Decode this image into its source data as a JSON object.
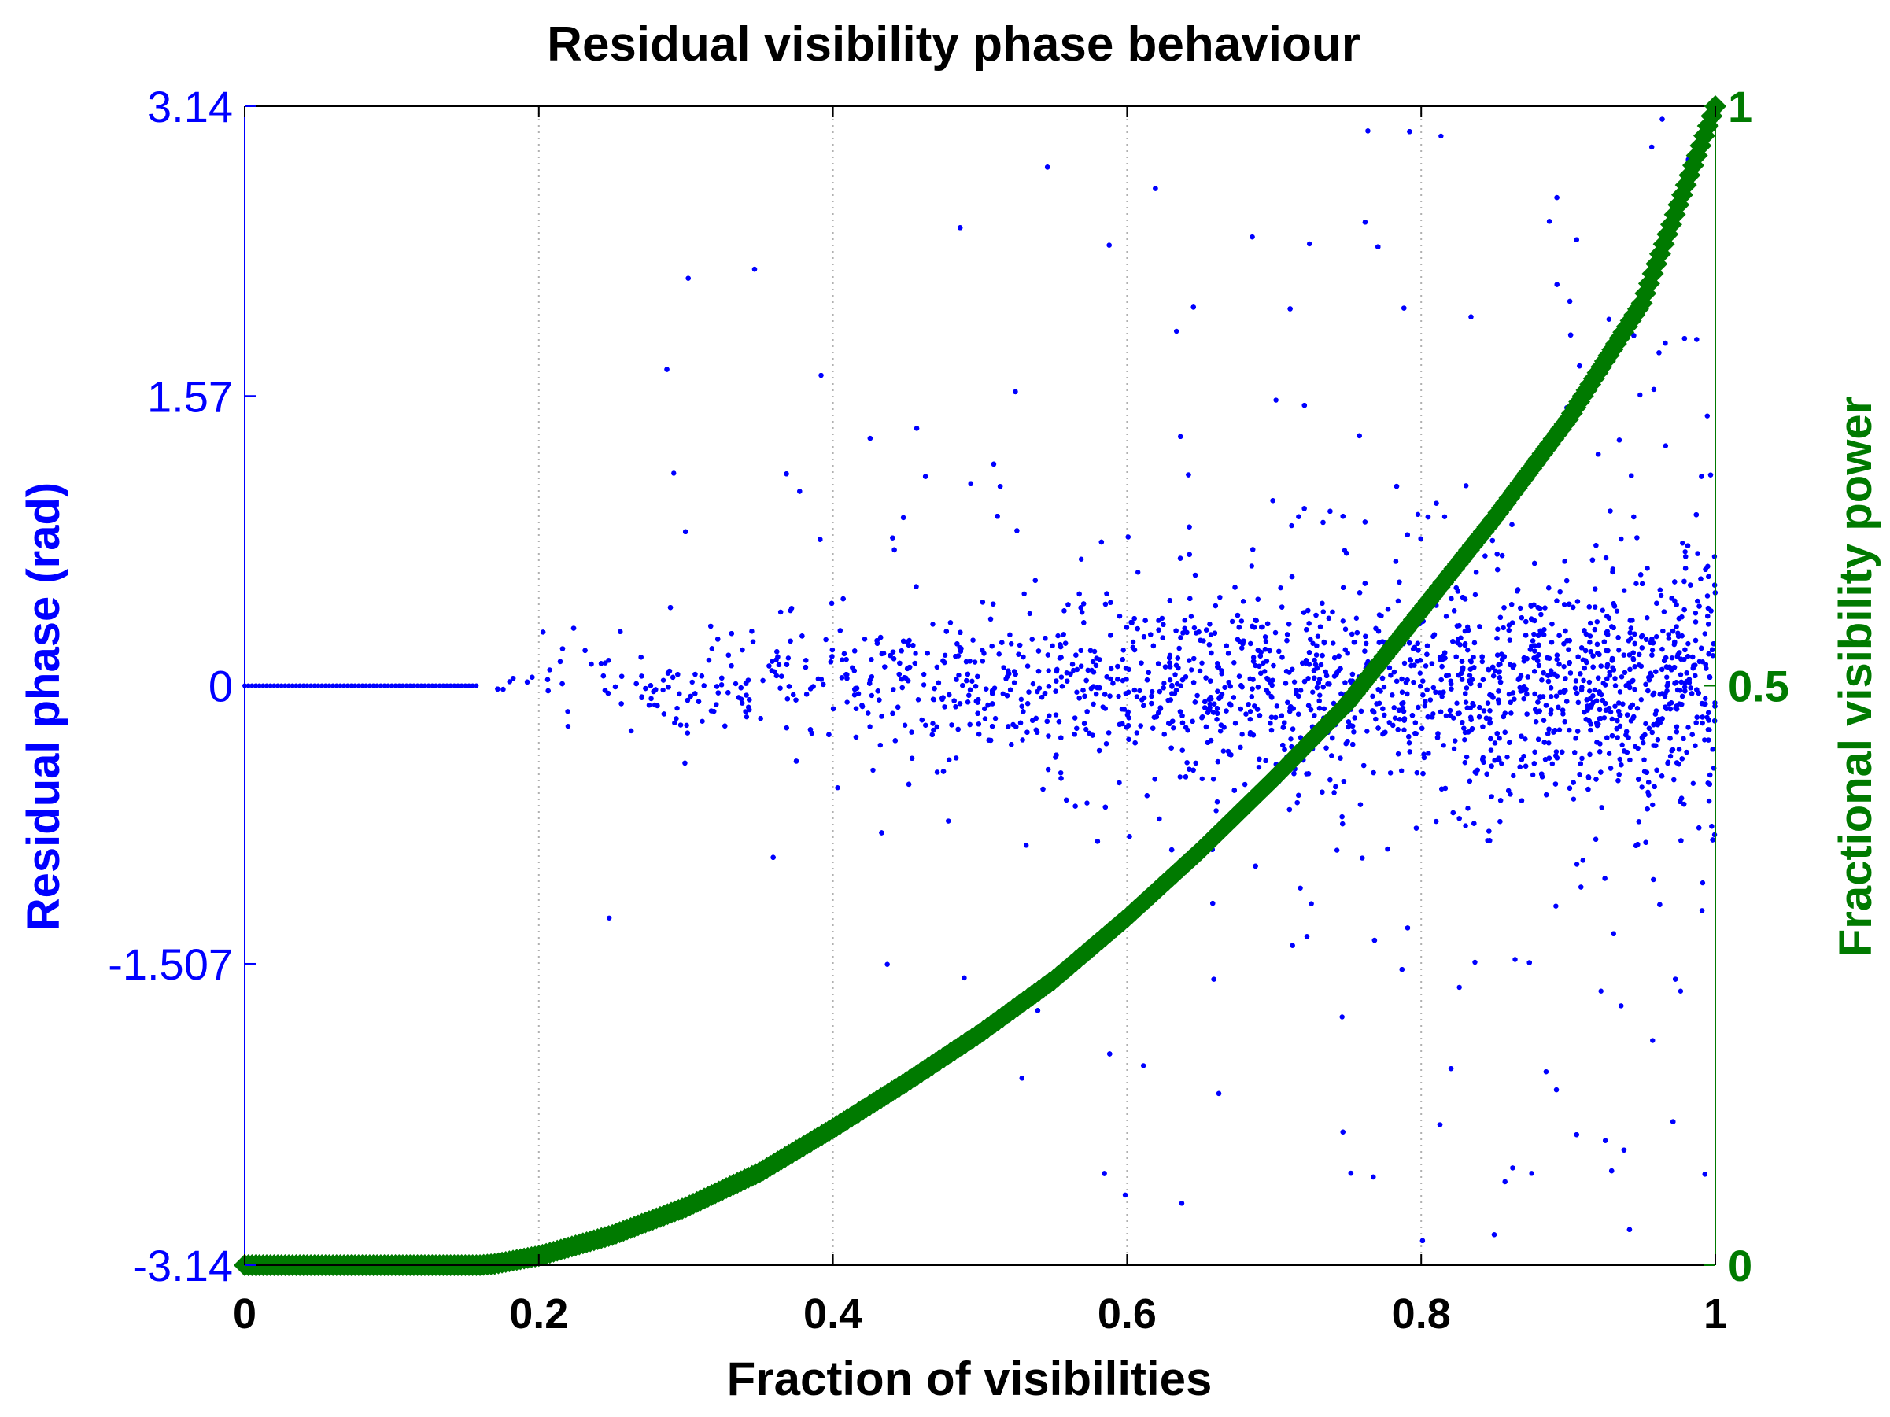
{
  "chart_data": {
    "type": "scatter",
    "title": "Residual visibility phase behaviour",
    "xlabel": "Fraction of visibilities",
    "ylabel_left": "Residual phase (rad)",
    "ylabel_right": "Fractional visibility power",
    "xlim": [
      0,
      1
    ],
    "ylim_left": [
      -3.14,
      3.14
    ],
    "ylim_right": [
      0,
      1
    ],
    "x_ticks": [
      "0",
      "0.2",
      "0.4",
      "0.6",
      "0.8",
      "1"
    ],
    "y_left_ticks": [
      {
        "value": 3.14,
        "label": "3.14"
      },
      {
        "value": 1.57,
        "label": "1.57"
      },
      {
        "value": 0,
        "label": "0"
      },
      {
        "value": -1.507,
        "label": "-1.507"
      },
      {
        "value": -3.14,
        "label": "-3.14"
      }
    ],
    "y_right_ticks": [
      {
        "value": 1,
        "label": "1"
      },
      {
        "value": 0.5,
        "label": "0.5"
      },
      {
        "value": 0,
        "label": "0"
      }
    ],
    "grid": "vertical dotted at x ticks",
    "colors": {
      "phase": "#0000ff",
      "power": "#007a00",
      "grid": "#b0b0b0",
      "axes": "#000000"
    },
    "series": [
      {
        "axis": "left",
        "marker": "dot",
        "color": "#0000ff",
        "description_values": {
          "zero_phase_segment_x": [
            0,
            0.16
          ],
          "scatter_region_x": [
            0.16,
            1
          ],
          "phase_spread_std_at_x": [
            {
              "x": 0.17,
              "std": 0.05
            },
            {
              "x": 0.2,
              "std": 0.1
            },
            {
              "x": 0.4,
              "std": 0.15
            },
            {
              "x": 0.6,
              "std": 0.2
            },
            {
              "x": 0.8,
              "std": 0.24
            },
            {
              "x": 1.0,
              "std": 0.3
            }
          ]
        }
      },
      {
        "axis": "right",
        "marker": "diamond",
        "color": "#007a00",
        "x": [
          0,
          0.1,
          0.16,
          0.17,
          0.2,
          0.25,
          0.3,
          0.35,
          0.4,
          0.45,
          0.5,
          0.55,
          0.6,
          0.65,
          0.7,
          0.75,
          0.8,
          0.85,
          0.9,
          0.95,
          1.0
        ],
        "values": [
          0,
          0,
          0,
          0.001,
          0.008,
          0.026,
          0.05,
          0.08,
          0.118,
          0.158,
          0.2,
          0.246,
          0.3,
          0.358,
          0.42,
          0.485,
          0.565,
          0.645,
          0.73,
          0.83,
          1.0
        ]
      }
    ]
  }
}
